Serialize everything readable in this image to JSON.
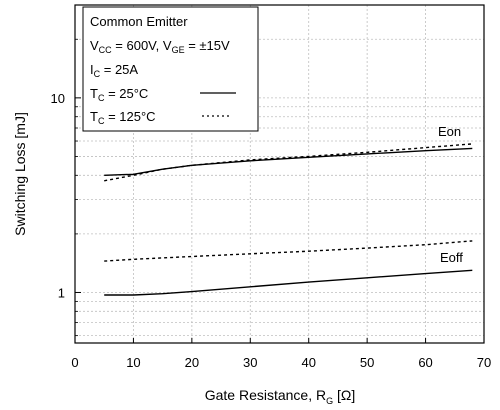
{
  "chart_data": {
    "type": "line",
    "xlabel": {
      "main": "Gate Resistance, R",
      "sub": "G",
      "unit": " [Ω]"
    },
    "ylabel": "Switching Loss [mJ]",
    "xlim": [
      0,
      70
    ],
    "ylim": [
      0.55,
      30
    ],
    "yscale": "log",
    "grid": true,
    "x_ticks": [
      0,
      10,
      20,
      30,
      40,
      50,
      60,
      70
    ],
    "y_ticks": [
      1,
      10
    ],
    "y_minor_ticks": [
      0.6,
      0.7,
      0.8,
      0.9,
      2,
      3,
      4,
      5,
      6,
      7,
      8,
      9,
      20,
      30
    ],
    "legend_box": {
      "line1": "Common Emitter",
      "line2": {
        "vcc_main": "V",
        "vcc_sub": "CC",
        "vcc_val": " = 600V, V",
        "vge_sub": "GE",
        "vge_val": " = ±15V"
      },
      "line3": {
        "main": "I",
        "sub": "C",
        "val": " = 25A"
      },
      "line4": {
        "main": "T",
        "sub": "C",
        "val": " = 25°C"
      },
      "line5": {
        "main": "T",
        "sub": "C",
        "val": " = 125°C"
      }
    },
    "annotations": {
      "eon": "Eon",
      "eoff": "Eoff"
    },
    "series": [
      {
        "name": "Eon",
        "condition": "25C",
        "style": "solid",
        "x": [
          5,
          10,
          15,
          20,
          30,
          40,
          50,
          60,
          68
        ],
        "y": [
          4.0,
          4.05,
          4.3,
          4.5,
          4.75,
          4.95,
          5.15,
          5.35,
          5.5
        ]
      },
      {
        "name": "Eon",
        "condition": "125C",
        "style": "dotted",
        "x": [
          5,
          10,
          15,
          20,
          30,
          40,
          50,
          60,
          68
        ],
        "y": [
          3.75,
          4.0,
          4.3,
          4.5,
          4.8,
          5.0,
          5.25,
          5.55,
          5.8
        ]
      },
      {
        "name": "Eoff",
        "condition": "25C",
        "style": "solid",
        "x": [
          5,
          10,
          15,
          20,
          30,
          40,
          50,
          60,
          68
        ],
        "y": [
          0.97,
          0.97,
          0.985,
          1.01,
          1.07,
          1.13,
          1.19,
          1.25,
          1.3
        ]
      },
      {
        "name": "Eoff",
        "condition": "125C",
        "style": "dotted",
        "x": [
          5,
          10,
          20,
          30,
          40,
          50,
          60,
          68
        ],
        "y": [
          1.45,
          1.48,
          1.53,
          1.58,
          1.63,
          1.69,
          1.76,
          1.84
        ]
      }
    ]
  }
}
